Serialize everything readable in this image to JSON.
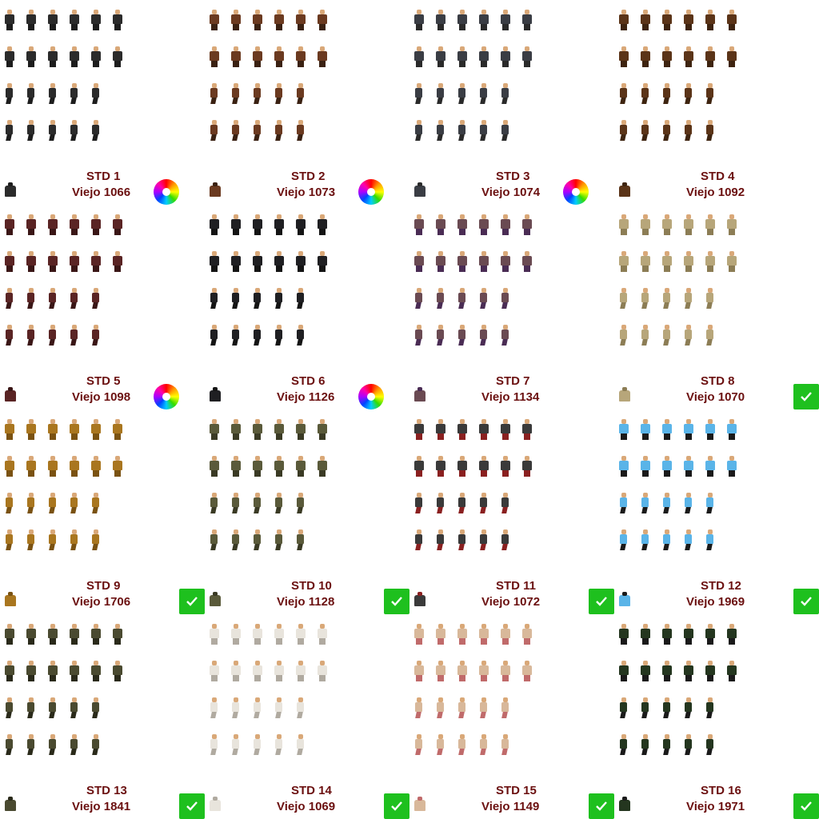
{
  "sheet": {
    "icons": {
      "recolor": "color-wheel-icon",
      "approved": "checkmark-icon"
    },
    "colors": {
      "label": "#6b1010",
      "approved_bg": "#1ec01e"
    },
    "items": [
      {
        "std": "STD 1",
        "viejo": "Viejo 1066",
        "badge": "wheel",
        "body": "#2b2b2b",
        "legs": "#1d1d1d"
      },
      {
        "std": "STD 2",
        "viejo": "Viejo 1073",
        "badge": "wheel",
        "body": "#6b3a20",
        "legs": "#3a2112"
      },
      {
        "std": "STD 3",
        "viejo": "Viejo 1074",
        "badge": "wheel",
        "body": "#3a3d44",
        "legs": "#2a2a2a"
      },
      {
        "std": "STD 4",
        "viejo": "Viejo 1092",
        "badge": "none",
        "body": "#5b3418",
        "legs": "#3e2410"
      },
      {
        "std": "STD 5",
        "viejo": "Viejo 1098",
        "badge": "wheel",
        "body": "#5a2424",
        "legs": "#3a1616"
      },
      {
        "std": "STD 6",
        "viejo": "Viejo 1126",
        "badge": "wheel",
        "body": "#1f1f22",
        "legs": "#141414"
      },
      {
        "std": "STD 7",
        "viejo": "Viejo 1134",
        "badge": "none",
        "body": "#6a4a52",
        "legs": "#4a2c54"
      },
      {
        "std": "STD 8",
        "viejo": "Viejo 1070",
        "badge": "check",
        "body": "#b7a67a",
        "legs": "#8c7d55"
      },
      {
        "std": "STD 9",
        "viejo": "Viejo 1706",
        "badge": "check",
        "body": "#a9761f",
        "legs": "#7a5212"
      },
      {
        "std": "STD 10",
        "viejo": "Viejo 1128",
        "badge": "check",
        "body": "#5a5a3a",
        "legs": "#3a3a24"
      },
      {
        "std": "STD 11",
        "viejo": "Viejo 1072",
        "badge": "check",
        "body": "#3a3a3a",
        "legs": "#8a2020"
      },
      {
        "std": "STD 12",
        "viejo": "Viejo 1969",
        "badge": "check",
        "body": "#5ab4e8",
        "legs": "#1a1a1a"
      },
      {
        "std": "STD 13",
        "viejo": "Viejo 1841",
        "badge": "check",
        "body": "#4a4a30",
        "legs": "#2a2a1a"
      },
      {
        "std": "STD 14",
        "viejo": "Viejo 1069",
        "badge": "check",
        "body": "#e8e4dc",
        "legs": "#b0aaa0"
      },
      {
        "std": "STD 15",
        "viejo": "Viejo 1149",
        "badge": "check",
        "body": "#d8b89a",
        "legs": "#c06a6a"
      },
      {
        "std": "STD 16",
        "viejo": "Viejo 1971",
        "badge": "check",
        "body": "#24361f",
        "legs": "#1a1a1a"
      }
    ]
  }
}
